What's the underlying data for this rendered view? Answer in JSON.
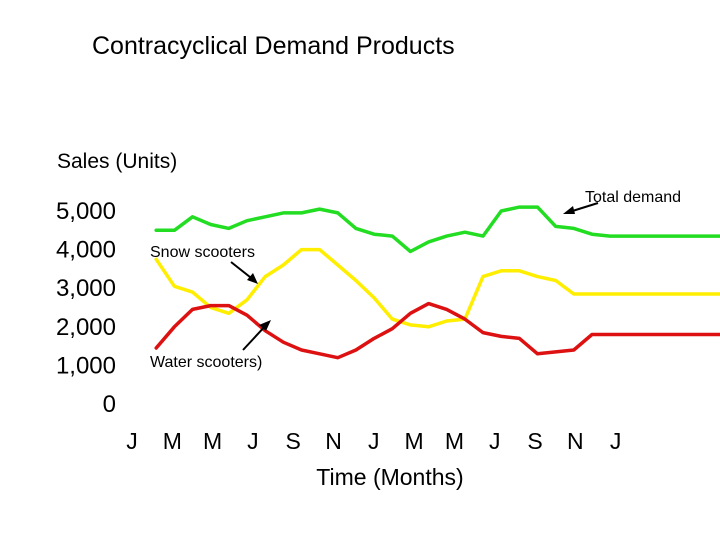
{
  "chart_data": {
    "type": "line",
    "title": "Contracyclical Demand Products",
    "ylabel": "Sales (Units)",
    "xlabel": "Time (Months)",
    "y_ticks": [
      "5,000",
      "4,000",
      "3,000",
      "2,000",
      "1,000",
      "0"
    ],
    "x_ticks": [
      "J",
      "M",
      "M",
      "J",
      "S",
      "N",
      "J",
      "M",
      "M",
      "J",
      "S",
      "N",
      "J"
    ],
    "annotations": {
      "total": "Total demand",
      "snow": "Snow scooters",
      "water": "Water scooters)"
    },
    "grid": false,
    "legend": "none",
    "series": [
      {
        "key": "total",
        "color": "#22dd22",
        "x": [
          1,
          1.75,
          2.5,
          3.25,
          4,
          4.75,
          5.5,
          6.25,
          7,
          7.75,
          8.5,
          9.25,
          10,
          10.75,
          11.5,
          12.25,
          13,
          13.75,
          14.5,
          15.25,
          16,
          16.75,
          17.5,
          18.25,
          19,
          19.75,
          20.5,
          21.25,
          22,
          22.75,
          23.5,
          24.25,
          25
        ],
        "values": [
          4500,
          4500,
          4850,
          4650,
          4550,
          4750,
          4850,
          4950,
          4950,
          5050,
          4950,
          4550,
          4400,
          4350,
          3950,
          4200,
          4350,
          4450,
          4350,
          5000,
          5100,
          5100,
          4600,
          4550,
          4400,
          4350,
          4350,
          4350,
          4350,
          4350,
          4350,
          4350,
          4350
        ]
      },
      {
        "key": "snow",
        "color": "#ffee00",
        "x": [
          1,
          1.75,
          2.5,
          3.25,
          4,
          4.75,
          5.5,
          6.25,
          7,
          7.75,
          8.5,
          9.25,
          10,
          10.75,
          11.5,
          12.25,
          13,
          13.75,
          14.5,
          15.25,
          16,
          16.75,
          17.5,
          18.25,
          19,
          19.75,
          20.5,
          21.25,
          22,
          22.75,
          23.5,
          24.25,
          25
        ],
        "values": [
          3750,
          3050,
          2900,
          2500,
          2350,
          2700,
          3300,
          3600,
          4000,
          4000,
          3600,
          3200,
          2750,
          2200,
          2050,
          2000,
          2150,
          2200,
          3300,
          3450,
          3450,
          3300,
          3200,
          2850,
          2850,
          2850,
          2850,
          2850,
          2850,
          2850,
          2850,
          2850,
          2850
        ]
      },
      {
        "key": "water",
        "color": "#dd1111",
        "x": [
          1,
          1.75,
          2.5,
          3.25,
          4,
          4.75,
          5.5,
          6.25,
          7,
          7.75,
          8.5,
          9.25,
          10,
          10.75,
          11.5,
          12.25,
          13,
          13.75,
          14.5,
          15.25,
          16,
          16.75,
          17.5,
          18.25,
          19,
          19.75,
          20.5,
          21.25,
          22,
          22.75,
          23.5,
          24.25,
          25
        ],
        "values": [
          1450,
          2000,
          2450,
          2550,
          2550,
          2300,
          1900,
          1600,
          1400,
          1300,
          1200,
          1400,
          1700,
          1950,
          2350,
          2600,
          2450,
          2200,
          1850,
          1750,
          1700,
          1300,
          1350,
          1400,
          1800,
          1800,
          1800,
          1800,
          1800,
          1800,
          1800,
          1800,
          1800
        ]
      }
    ]
  }
}
